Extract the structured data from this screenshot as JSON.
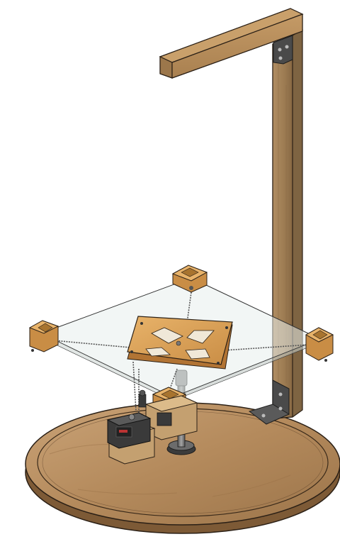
{
  "scene": {
    "colors": {
      "background": "#ffffff",
      "wood_light": "#d9b07a",
      "wood_mid": "#b98a55",
      "wood_dark": "#8a6238",
      "column_wood": "#a8875e",
      "column_dark": "#7a5f3d",
      "bracket_gold": "#e2a85a",
      "glass": "#e9efee",
      "string": "#666666",
      "metal": "#7d7d7d",
      "metal_dark": "#444444",
      "outline": "#2b2016"
    }
  }
}
